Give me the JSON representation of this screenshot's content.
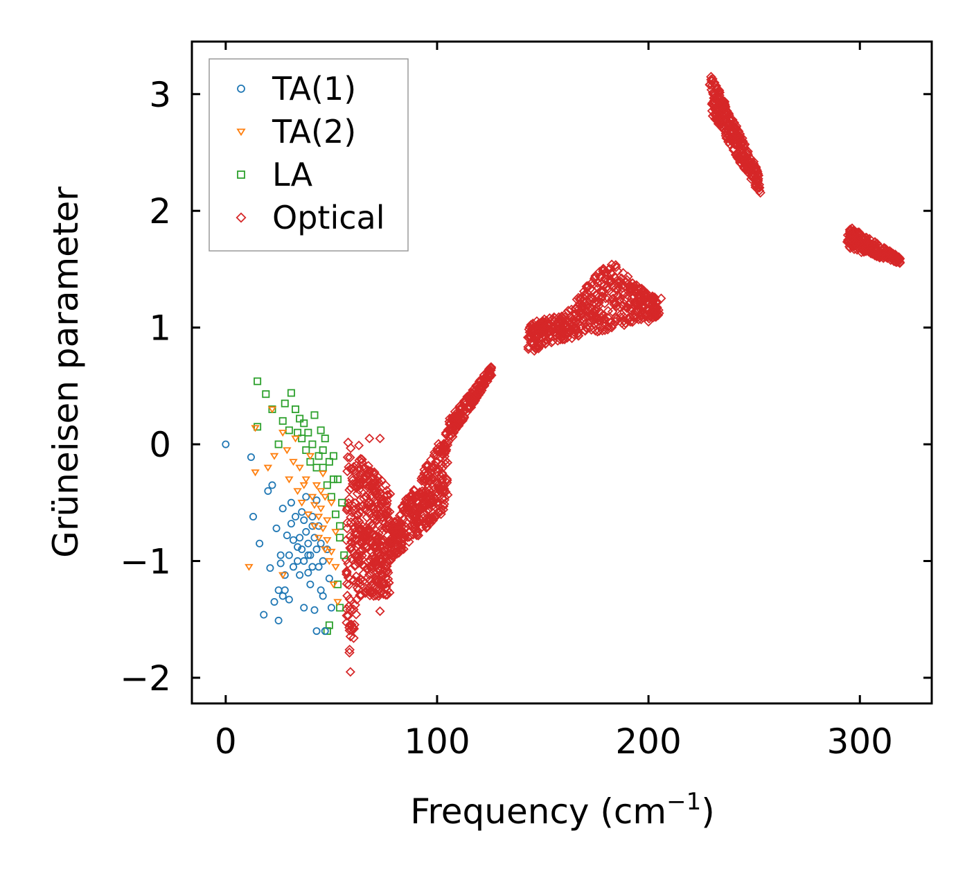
{
  "chart_data": {
    "type": "scatter",
    "title": "",
    "xlabel": "Frequency (cm",
    "xlabel_sup": "−1",
    "xlabel_close": ")",
    "ylabel": "Grüneisen parameter",
    "xlim": [
      -16,
      334
    ],
    "ylim": [
      -2.22,
      3.45
    ],
    "xticks": [
      0,
      100,
      200,
      300
    ],
    "yticks": [
      -2,
      -1,
      0,
      1,
      2,
      3
    ],
    "xtick_labels": [
      "0",
      "100",
      "200",
      "300"
    ],
    "ytick_labels": [
      "−2",
      "−1",
      "0",
      "1",
      "2",
      "3"
    ],
    "legend_position": "top-left",
    "series": [
      {
        "name": "TA(1)",
        "marker": "circle",
        "color": "#1f77b4",
        "points": [
          [
            0,
            0
          ],
          [
            12,
            -0.11
          ],
          [
            13,
            -0.62
          ],
          [
            18,
            -1.46
          ],
          [
            16,
            -0.85
          ],
          [
            20,
            -0.4
          ],
          [
            22,
            -0.35
          ],
          [
            21,
            -1.06
          ],
          [
            23,
            -1.35
          ],
          [
            25,
            -1.51
          ],
          [
            24,
            -0.72
          ],
          [
            26,
            -0.95
          ],
          [
            27,
            -0.55
          ],
          [
            28,
            -1.25
          ],
          [
            29,
            -0.78
          ],
          [
            30,
            -1.33
          ],
          [
            31,
            -0.5
          ],
          [
            32,
            -1.05
          ],
          [
            33,
            -0.62
          ],
          [
            34,
            -0.88
          ],
          [
            35,
            -1.12
          ],
          [
            36,
            -0.58
          ],
          [
            37,
            -1.4
          ],
          [
            38,
            -0.45
          ],
          [
            39,
            -0.95
          ],
          [
            40,
            -1.2
          ],
          [
            41,
            -0.7
          ],
          [
            42,
            -1.42
          ],
          [
            43,
            -0.48
          ],
          [
            44,
            -1.05
          ],
          [
            45,
            -0.85
          ],
          [
            46,
            -1.3
          ],
          [
            47,
            -1.6
          ],
          [
            48,
            -0.9
          ],
          [
            49,
            -1.15
          ],
          [
            50,
            -1.4
          ],
          [
            35,
            -0.8
          ],
          [
            36,
            -0.9
          ],
          [
            37,
            -1.0
          ],
          [
            38,
            -0.75
          ],
          [
            39,
            -0.85
          ],
          [
            40,
            -0.95
          ],
          [
            41,
            -1.05
          ],
          [
            42,
            -0.8
          ],
          [
            43,
            -0.9
          ],
          [
            44,
            -0.7
          ],
          [
            37,
            -0.65
          ],
          [
            39,
            -1.1
          ],
          [
            41,
            -0.62
          ],
          [
            34,
            -1.0
          ],
          [
            46,
            -1.0
          ],
          [
            45,
            -1.25
          ],
          [
            32,
            -0.82
          ],
          [
            30,
            -0.95
          ],
          [
            28,
            -1.12
          ],
          [
            26,
            -1.02
          ],
          [
            43,
            -1.6
          ],
          [
            25,
            -1.25
          ],
          [
            27,
            -1.3
          ],
          [
            31,
            -0.68
          ]
        ]
      },
      {
        "name": "TA(2)",
        "marker": "triangle",
        "color": "#ff7f0e",
        "points": [
          [
            14,
            0.14
          ],
          [
            14,
            -0.24
          ],
          [
            22,
            0.3
          ],
          [
            23,
            -0.1
          ],
          [
            27,
            0.1
          ],
          [
            29,
            -0.05
          ],
          [
            30,
            -0.3
          ],
          [
            32,
            -0.15
          ],
          [
            33,
            0.05
          ],
          [
            34,
            -0.4
          ],
          [
            35,
            -0.2
          ],
          [
            36,
            -0.5
          ],
          [
            38,
            -0.3
          ],
          [
            39,
            -0.6
          ],
          [
            40,
            -0.1
          ],
          [
            41,
            -0.45
          ],
          [
            42,
            -0.7
          ],
          [
            43,
            -0.35
          ],
          [
            44,
            -0.8
          ],
          [
            45,
            -0.55
          ],
          [
            46,
            -0.25
          ],
          [
            47,
            -0.9
          ],
          [
            48,
            -0.65
          ],
          [
            49,
            -1.0
          ],
          [
            50,
            -0.5
          ],
          [
            51,
            -1.2
          ],
          [
            52,
            -0.75
          ],
          [
            53,
            -1.35
          ],
          [
            27,
            -1.12
          ],
          [
            11,
            -1.05
          ],
          [
            20,
            -0.2
          ],
          [
            37,
            -0.35
          ],
          [
            42,
            -0.52
          ],
          [
            44,
            -0.62
          ],
          [
            46,
            -0.72
          ],
          [
            48,
            -0.82
          ],
          [
            50,
            -0.92
          ],
          [
            47,
            -0.45
          ],
          [
            45,
            -0.4
          ],
          [
            52,
            -1.05
          ]
        ]
      },
      {
        "name": "LA",
        "marker": "square",
        "color": "#2ca02c",
        "points": [
          [
            15,
            0.54
          ],
          [
            19,
            0.43
          ],
          [
            15,
            0.15
          ],
          [
            22,
            0.3
          ],
          [
            25,
            0.0
          ],
          [
            27,
            0.2
          ],
          [
            28,
            0.35
          ],
          [
            30,
            0.12
          ],
          [
            31,
            0.44
          ],
          [
            33,
            0.3
          ],
          [
            34,
            0.1
          ],
          [
            35,
            0.22
          ],
          [
            36,
            0.05
          ],
          [
            37,
            0.18
          ],
          [
            38,
            -0.05
          ],
          [
            39,
            0.1
          ],
          [
            40,
            -0.15
          ],
          [
            41,
            0.0
          ],
          [
            42,
            0.25
          ],
          [
            44,
            -0.1
          ],
          [
            45,
            0.12
          ],
          [
            46,
            -0.2
          ],
          [
            47,
            0.05
          ],
          [
            48,
            -0.35
          ],
          [
            49,
            -0.15
          ],
          [
            50,
            -0.45
          ],
          [
            51,
            -0.1
          ],
          [
            52,
            -0.6
          ],
          [
            53,
            -0.3
          ],
          [
            54,
            -0.8
          ],
          [
            55,
            -0.5
          ],
          [
            56,
            -0.95
          ],
          [
            53,
            -1.2
          ],
          [
            54,
            -1.4
          ],
          [
            49,
            -1.55
          ],
          [
            48,
            -1.6
          ],
          [
            43,
            -0.2
          ],
          [
            46,
            -0.05
          ],
          [
            51,
            -0.3
          ],
          [
            54,
            -0.7
          ]
        ]
      },
      {
        "name": "Optical",
        "marker": "diamond",
        "color": "#d62728",
        "clusters": [
          {
            "x_range": [
              57,
              78
            ],
            "y_top_start": 0.05,
            "y_top_end": -0.4,
            "y_min": -1.95,
            "y_max": 0.05,
            "n": 420
          },
          {
            "x_range": [
              78,
              105
            ],
            "y_bottom_start": -1.0,
            "y_bottom_end": -0.55,
            "y_top_start": -0.7,
            "y_top_end": 0.15,
            "n": 320
          },
          {
            "x_range": [
              105,
              126
            ],
            "y_bottom_start": 0.0,
            "y_bottom_end": 0.6,
            "y_top_start": 0.2,
            "y_top_end": 0.68,
            "n": 180
          },
          {
            "x_range": [
              143,
              205
            ],
            "y_bottom_start": 0.8,
            "y_bottom_end": 1.1,
            "y_top_start": 1.05,
            "y_top_end": 1.25,
            "peak_x": 182,
            "peak_y": 1.58,
            "n": 520
          },
          {
            "x_range": [
              229,
              253
            ],
            "y_bottom_start": 2.85,
            "y_bottom_end": 2.12,
            "y_top_start": 3.2,
            "y_top_end": 2.3,
            "n": 260
          },
          {
            "x_range": [
              294,
              319
            ],
            "y_bottom_start": 1.68,
            "y_bottom_end": 1.55,
            "y_top_start": 1.88,
            "y_top_end": 1.6,
            "n": 220
          }
        ],
        "points": [
          [
            59,
            -1.95
          ],
          [
            63,
            -0.01
          ],
          [
            68,
            0.05
          ],
          [
            73,
            0.05
          ],
          [
            70,
            -1.3
          ],
          [
            73,
            -1.43
          ],
          [
            103,
            -0.56
          ],
          [
            100,
            -0.5
          ],
          [
            146,
            0.8
          ],
          [
            148,
            0.82
          ],
          [
            167,
            0.93
          ],
          [
            173,
            0.98
          ],
          [
            200,
            1.05
          ],
          [
            206,
            1.25
          ]
        ]
      }
    ]
  }
}
